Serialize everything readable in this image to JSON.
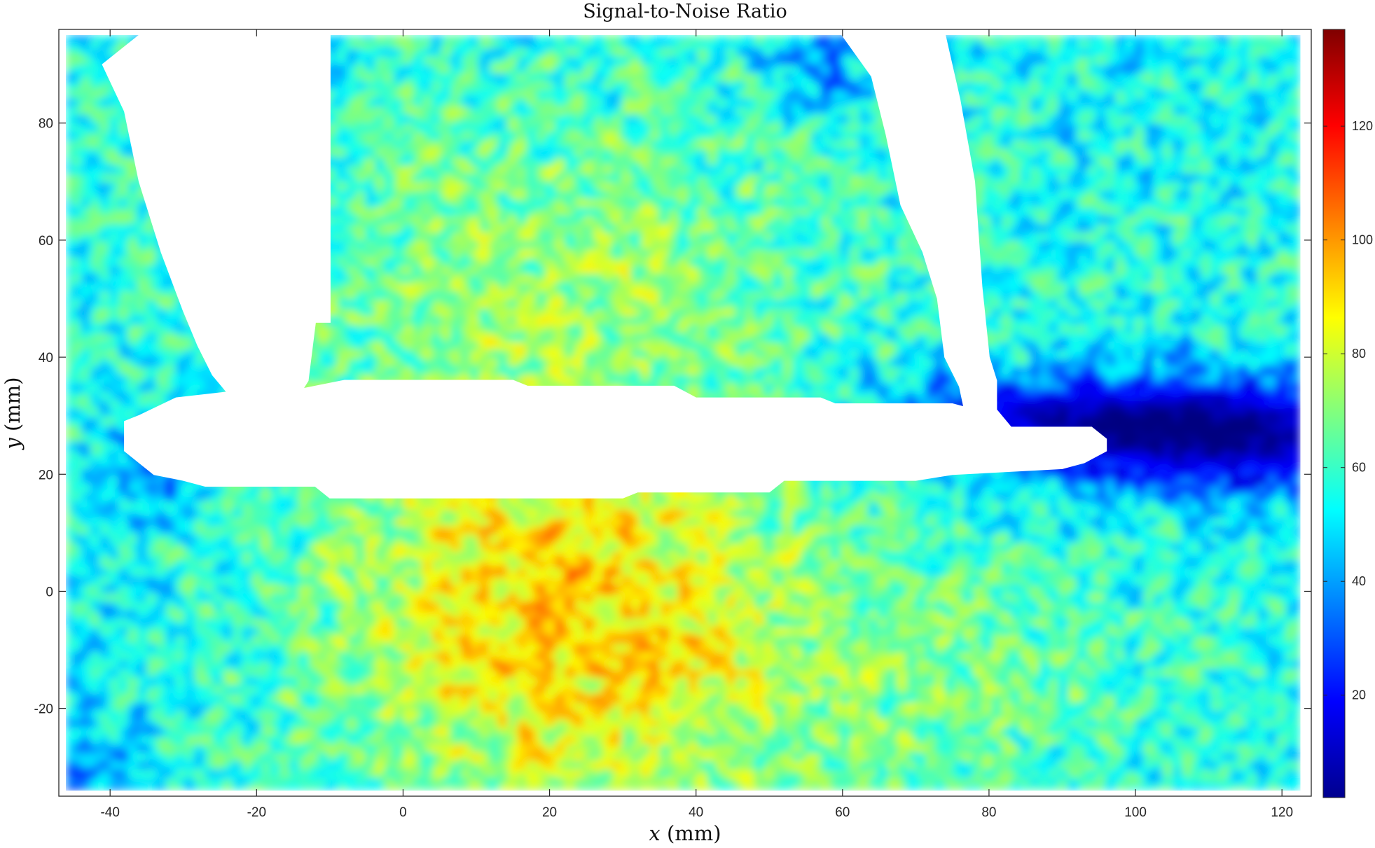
{
  "chart_data": {
    "type": "heatmap",
    "title": "Signal-to-Noise Ratio",
    "xlabel": "x (mm)",
    "ylabel": "y (mm)",
    "xlim": [
      -47,
      124
    ],
    "ylim": [
      -35,
      96
    ],
    "x_ticks": [
      -40,
      -20,
      0,
      20,
      40,
      60,
      80,
      100,
      120
    ],
    "y_ticks": [
      -20,
      0,
      20,
      40,
      60,
      80
    ],
    "x_tick_labels": [
      "-40",
      "-20",
      "0",
      "20",
      "40",
      "60",
      "80",
      "100",
      "120"
    ],
    "y_tick_labels": [
      "-20",
      "0",
      "20",
      "40",
      "60",
      "80"
    ],
    "colorbar": {
      "colormap": "jet",
      "clim": [
        2,
        137
      ],
      "ticks": [
        20,
        40,
        60,
        80,
        100,
        120
      ],
      "tick_labels": [
        "20",
        "40",
        "60",
        "80",
        "100",
        "120"
      ]
    },
    "data_extent": {
      "x": [
        -46,
        122.5
      ],
      "y": [
        -34,
        95
      ]
    },
    "background_level": 55,
    "features": [
      {
        "name": "lower central high band",
        "x": 22,
        "y": -5,
        "sx": 22,
        "sy": 25,
        "amp": 38
      },
      {
        "name": "upper middle elevated",
        "x": 20,
        "y": 55,
        "sx": 28,
        "sy": 22,
        "amp": 15
      },
      {
        "name": "lower right elevated",
        "x": 75,
        "y": -15,
        "sx": 22,
        "sy": 14,
        "amp": 12
      },
      {
        "name": "right dark trough",
        "x": 112,
        "y": 27,
        "sx": 18,
        "sy": 7,
        "amp": -52
      },
      {
        "name": "right trough tail",
        "x": 82,
        "y": 30,
        "sx": 15,
        "sy": 5,
        "amp": -28
      },
      {
        "name": "left dark patch",
        "x": -33,
        "y": 22,
        "sx": 5,
        "sy": 6,
        "amp": -25
      },
      {
        "name": "bottom left dark",
        "x": -43,
        "y": -30,
        "sx": 6,
        "sy": 6,
        "amp": -18
      },
      {
        "name": "top dark patch",
        "x": 57,
        "y": 90,
        "sx": 5,
        "sy": 5,
        "amp": -20
      }
    ],
    "masked_regions": [
      [
        [
          -36,
          95
        ],
        [
          -10,
          95
        ],
        [
          -10,
          46
        ],
        [
          -12,
          46
        ],
        [
          -13,
          36
        ],
        [
          -14,
          34
        ],
        [
          -24,
          34
        ],
        [
          -26,
          37
        ],
        [
          -28,
          42
        ],
        [
          -30,
          48
        ],
        [
          -33,
          58
        ],
        [
          -36,
          70
        ],
        [
          -38,
          82
        ],
        [
          -41,
          90
        ]
      ],
      [
        [
          -38,
          29
        ],
        [
          -36,
          30
        ],
        [
          -31,
          33
        ],
        [
          -24,
          34
        ],
        [
          -16,
          34
        ],
        [
          -8,
          36
        ],
        [
          15,
          36
        ],
        [
          17,
          35
        ],
        [
          37,
          35
        ],
        [
          40,
          33
        ],
        [
          57,
          33
        ],
        [
          59,
          32
        ],
        [
          75,
          32
        ],
        [
          78,
          31
        ],
        [
          81,
          31
        ],
        [
          83,
          28
        ],
        [
          94,
          28
        ],
        [
          96,
          26
        ],
        [
          96,
          24
        ],
        [
          93,
          22
        ],
        [
          90,
          21
        ],
        [
          75,
          20
        ],
        [
          70,
          19
        ],
        [
          52,
          19
        ],
        [
          50,
          17
        ],
        [
          32,
          17
        ],
        [
          30,
          16
        ],
        [
          -10,
          16
        ],
        [
          -12,
          18
        ],
        [
          -27,
          18
        ],
        [
          -30,
          19
        ],
        [
          -34,
          20
        ],
        [
          -38,
          24
        ]
      ],
      [
        [
          60,
          95
        ],
        [
          74,
          95
        ],
        [
          76,
          84
        ],
        [
          78,
          70
        ],
        [
          79,
          52
        ],
        [
          80,
          40
        ],
        [
          81,
          36
        ],
        [
          81,
          29
        ],
        [
          77,
          29
        ],
        [
          76,
          35
        ],
        [
          74,
          40
        ],
        [
          73,
          50
        ],
        [
          71,
          58
        ],
        [
          68,
          66
        ],
        [
          66,
          78
        ],
        [
          64,
          88
        ]
      ]
    ]
  }
}
